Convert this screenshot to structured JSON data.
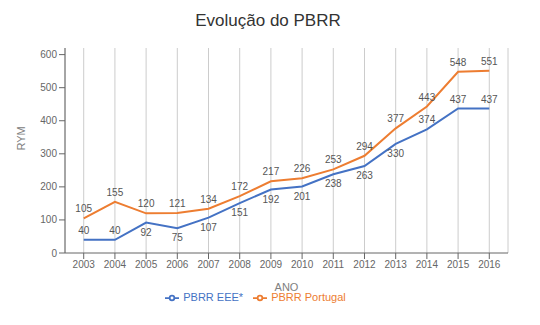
{
  "chart_data": {
    "type": "line",
    "title": "Evolução do PBRR",
    "x_label": "ANO",
    "y_label": "RYM",
    "x": [
      2003,
      2004,
      2005,
      2006,
      2007,
      2008,
      2009,
      2010,
      2011,
      2012,
      2013,
      2014,
      2015,
      2016
    ],
    "series": [
      {
        "name": "PBRR EEE*",
        "color": "#4472C4",
        "values": [
          40,
          40,
          92,
          75,
          107,
          151,
          192,
          201,
          238,
          263,
          330,
          374,
          437,
          437
        ]
      },
      {
        "name": "PBRR Portugal",
        "color": "#ED7D31",
        "values": [
          105,
          155,
          120,
          121,
          134,
          172,
          217,
          226,
          253,
          294,
          377,
          443,
          548,
          551
        ]
      }
    ],
    "xlim": [
      2002.4,
      2016.6
    ],
    "xticks": [
      2003,
      2004,
      2005,
      2006,
      2007,
      2008,
      2009,
      2010,
      2011,
      2012,
      2013,
      2014,
      2015,
      2016
    ],
    "ylim": [
      0,
      620
    ],
    "yticks": [
      0,
      100,
      200,
      300,
      400,
      500,
      600
    ],
    "grid": "x",
    "legend": "bottom",
    "data_labels": true
  }
}
